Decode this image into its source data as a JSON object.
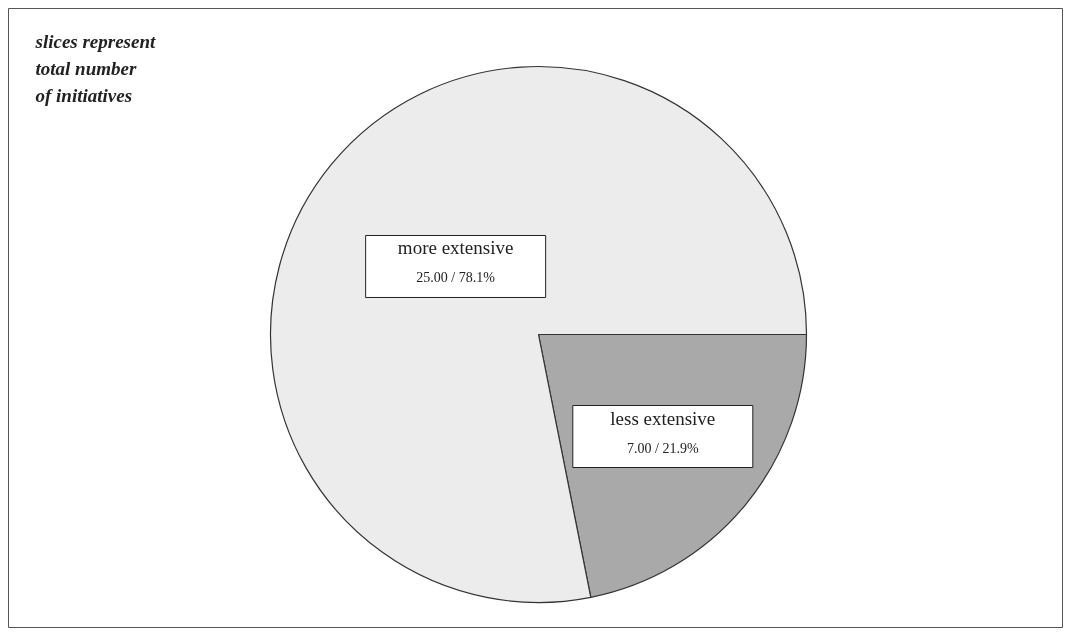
{
  "chart_data": {
    "type": "pie",
    "categories": [
      "less extensive",
      "more extensive"
    ],
    "values": [
      7,
      25
    ],
    "colors": [
      "#a9a9a9",
      "#ececec"
    ],
    "value_labels": [
      "7.00 / 21.9%",
      "25.00 / 78.1%"
    ],
    "annotations": [
      "slices represent\ntotal number\nof initiatives"
    ]
  }
}
